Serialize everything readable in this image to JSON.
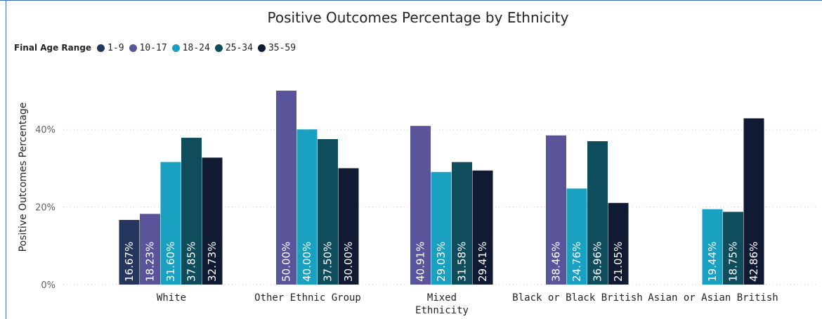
{
  "chart_data": {
    "type": "bar",
    "title": "Positive Outcomes Percentage by Ethnicity",
    "ylabel": "Positive Outcomes Percentage",
    "xlabel": "",
    "ylim": [
      0,
      52
    ],
    "y_ticks": [
      {
        "value": 0,
        "label": "0%"
      },
      {
        "value": 20,
        "label": "20%"
      },
      {
        "value": 40,
        "label": "40%"
      }
    ],
    "grid": true,
    "legend_title": "Final Age Range",
    "legend_position": "top-left",
    "categories": [
      "White",
      "Other Ethnic Group",
      "Mixed Ethnicity",
      "Black or Black British",
      "Asian or Asian British"
    ],
    "category_labels": [
      [
        "White"
      ],
      [
        "Other Ethnic Group"
      ],
      [
        "Mixed",
        "Ethnicity"
      ],
      [
        "Black or Black British"
      ],
      [
        "Asian or Asian British"
      ]
    ],
    "series": [
      {
        "name": "1-9",
        "color": "#26355e",
        "values": [
          16.67,
          null,
          null,
          null,
          null
        ],
        "labels": [
          "16.67%",
          null,
          null,
          null,
          null
        ]
      },
      {
        "name": "10-17",
        "color": "#5a559a",
        "values": [
          18.23,
          50.0,
          40.91,
          38.46,
          null
        ],
        "labels": [
          "18.23%",
          "50.00%",
          "40.91%",
          "38.46%",
          null
        ]
      },
      {
        "name": "18-24",
        "color": "#1aa0c0",
        "values": [
          31.6,
          40.0,
          29.03,
          24.76,
          19.44
        ],
        "labels": [
          "31.60%",
          "40.00%",
          "29.03%",
          "24.76%",
          "19.44%"
        ]
      },
      {
        "name": "25-34",
        "color": "#0f4c5c",
        "values": [
          37.85,
          37.5,
          31.58,
          36.96,
          18.75
        ],
        "labels": [
          "37.85%",
          "37.50%",
          "31.58%",
          "36.96%",
          "18.75%"
        ]
      },
      {
        "name": "35-59",
        "color": "#111a33",
        "values": [
          32.73,
          30.0,
          29.41,
          21.05,
          42.86
        ],
        "labels": [
          "32.73%",
          "30.00%",
          "29.41%",
          "21.05%",
          "42.86%"
        ]
      }
    ]
  }
}
